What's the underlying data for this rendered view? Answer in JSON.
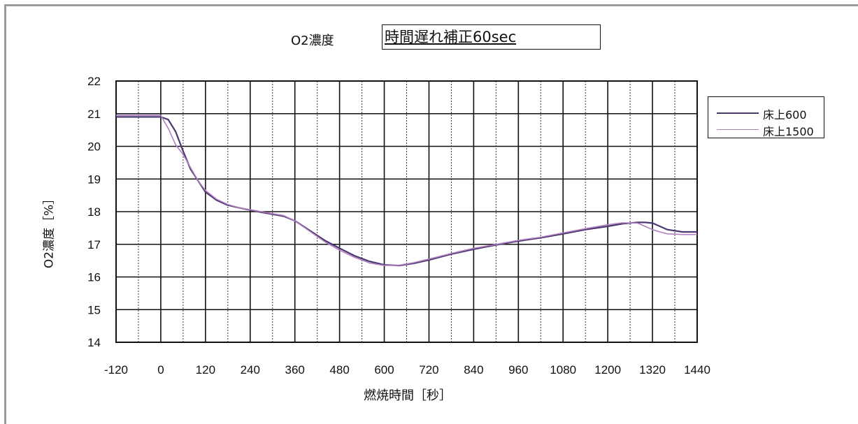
{
  "chart_data": {
    "type": "line",
    "title": "O2濃度",
    "subtitle": "時間遅れ補正60sec",
    "xlabel": "燃焼時間［秒］",
    "ylabel": "O2濃度［%］",
    "xlim": [
      -120,
      1440
    ],
    "ylim": [
      14,
      22
    ],
    "x_ticks": [
      "-120",
      "0",
      "120",
      "240",
      "360",
      "480",
      "600",
      "720",
      "840",
      "960",
      "1080",
      "1200",
      "1320",
      "1440"
    ],
    "y_ticks": [
      "22",
      "21",
      "20",
      "19",
      "18",
      "17",
      "16",
      "15",
      "14"
    ],
    "grid": true,
    "legend_position": "right",
    "series": [
      {
        "name": "床上600",
        "color": "#4a3770",
        "x": [
          -120,
          -60,
          0,
          20,
          40,
          60,
          80,
          100,
          120,
          150,
          180,
          210,
          240,
          270,
          300,
          330,
          360,
          400,
          440,
          480,
          520,
          560,
          600,
          640,
          680,
          720,
          780,
          840,
          900,
          960,
          1020,
          1080,
          1140,
          1200,
          1240,
          1280,
          1300,
          1320,
          1340,
          1360,
          1400,
          1440
        ],
        "y": [
          20.9,
          20.9,
          20.9,
          20.82,
          20.45,
          19.85,
          19.3,
          18.95,
          18.6,
          18.35,
          18.2,
          18.12,
          18.05,
          17.98,
          17.92,
          17.86,
          17.72,
          17.42,
          17.12,
          16.88,
          16.65,
          16.48,
          16.37,
          16.35,
          16.42,
          16.52,
          16.7,
          16.85,
          16.98,
          17.1,
          17.2,
          17.32,
          17.45,
          17.55,
          17.63,
          17.67,
          17.67,
          17.65,
          17.55,
          17.45,
          17.38,
          17.38
        ]
      },
      {
        "name": "床上1500",
        "color": "#b080c0",
        "x": [
          -120,
          -60,
          0,
          20,
          40,
          60,
          80,
          100,
          120,
          150,
          180,
          210,
          240,
          270,
          300,
          330,
          360,
          400,
          440,
          480,
          520,
          560,
          600,
          640,
          680,
          720,
          780,
          840,
          900,
          960,
          1020,
          1080,
          1140,
          1200,
          1240,
          1280,
          1300,
          1320,
          1340,
          1360,
          1400,
          1440
        ],
        "y": [
          20.95,
          20.95,
          20.95,
          20.55,
          20.05,
          19.75,
          19.35,
          18.95,
          18.65,
          18.38,
          18.22,
          18.12,
          18.06,
          18.0,
          17.94,
          17.88,
          17.72,
          17.4,
          17.08,
          16.82,
          16.6,
          16.43,
          16.35,
          16.36,
          16.44,
          16.55,
          16.72,
          16.88,
          17.0,
          17.12,
          17.22,
          17.35,
          17.48,
          17.6,
          17.66,
          17.65,
          17.55,
          17.45,
          17.38,
          17.32,
          17.3,
          17.3
        ]
      }
    ]
  }
}
